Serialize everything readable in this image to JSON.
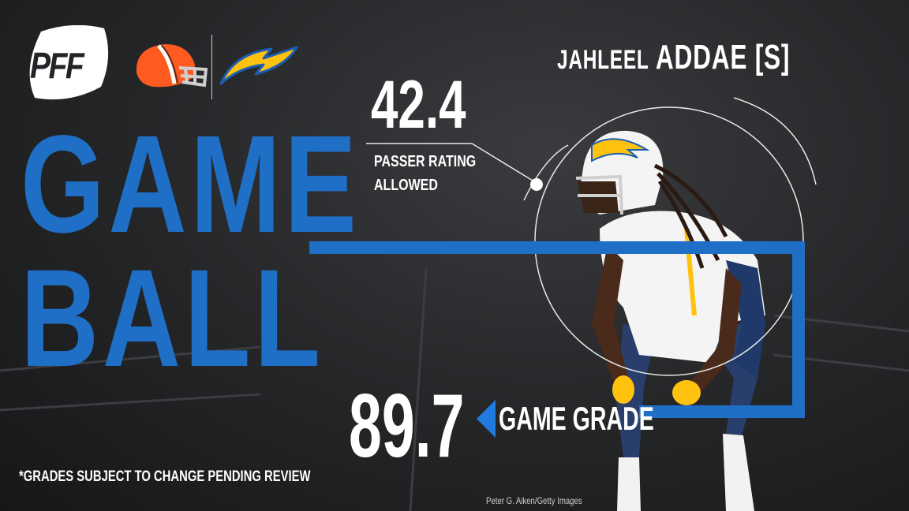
{
  "brand": {
    "logo_text": "PFF"
  },
  "teams": {
    "home": "browns-helmet-icon",
    "away": "chargers-bolt-icon"
  },
  "title": {
    "line1": "GAME",
    "line2": "BALL"
  },
  "player": {
    "first_name": "JAHLEEL",
    "last_name": "ADDAE [S]"
  },
  "stat": {
    "value": "42.4",
    "label_line1": "PASSER RATING",
    "label_line2": "ALLOWED"
  },
  "grade": {
    "value": "89.7",
    "label": "GAME GRADE"
  },
  "disclaimer": "*GRADES SUBJECT TO CHANGE PENDING REVIEW",
  "photo_credit": "Peter G. Aiken/Getty Images",
  "colors": {
    "accent": "#1f6fc7",
    "arrow": "#1f7be0",
    "text": "#ffffff",
    "background": "#242527"
  }
}
